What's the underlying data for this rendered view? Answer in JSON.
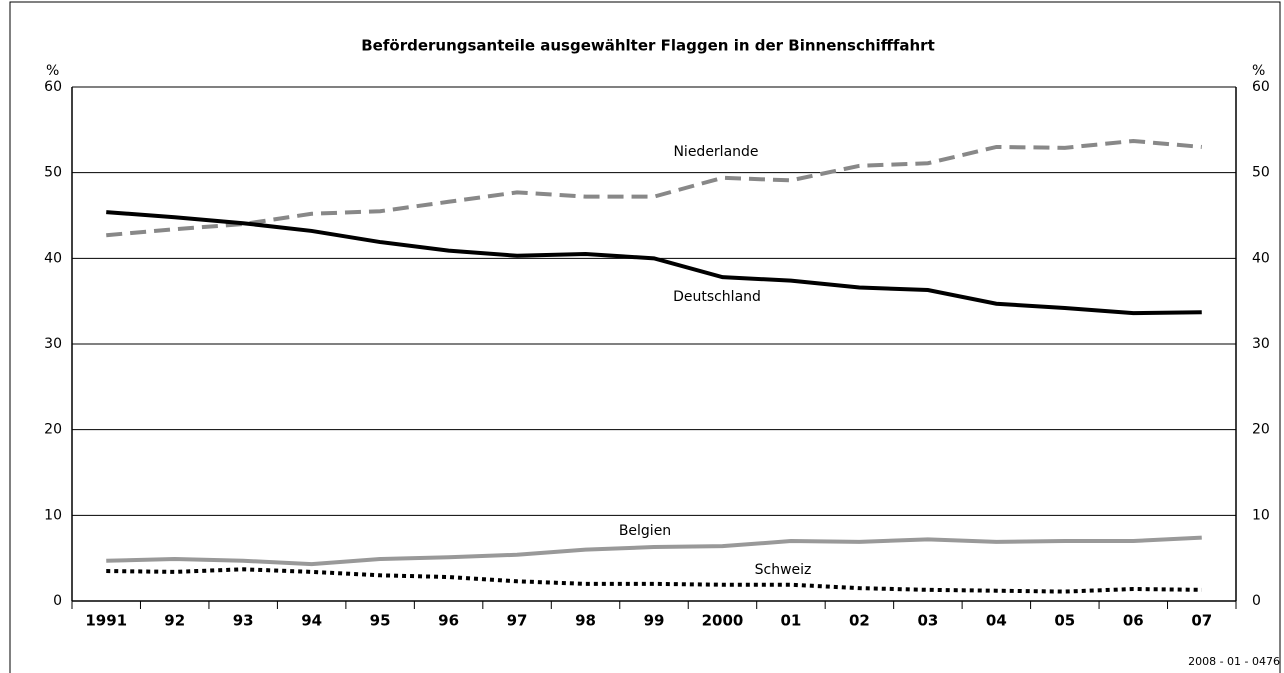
{
  "chart_data": {
    "type": "line",
    "title": "Beförderungsanteile ausgewählter Flaggen in der Binnenschifffahrt",
    "y_unit": "%",
    "y2_unit": "%",
    "source_code": "2008 - 01 - 0476",
    "categories": [
      "1991",
      "92",
      "93",
      "94",
      "95",
      "96",
      "97",
      "98",
      "99",
      "2000",
      "01",
      "02",
      "03",
      "04",
      "05",
      "06",
      "07"
    ],
    "series": [
      {
        "name": "Niederlande",
        "color": "#888888",
        "style": "dashed",
        "values": [
          42.7,
          43.4,
          44.0,
          45.2,
          45.5,
          46.6,
          47.7,
          47.2,
          47.2,
          49.4,
          49.1,
          50.8,
          51.1,
          53.0,
          52.9,
          53.7,
          53.0
        ]
      },
      {
        "name": "Deutschland",
        "color": "#000000",
        "style": "solid",
        "values": [
          45.4,
          44.8,
          44.1,
          43.2,
          41.9,
          40.9,
          40.3,
          40.5,
          40.0,
          37.8,
          37.4,
          36.6,
          36.3,
          34.7,
          34.2,
          33.6,
          33.7
        ]
      },
      {
        "name": "Belgien",
        "color": "#999999",
        "style": "solid",
        "values": [
          4.7,
          4.9,
          4.7,
          4.3,
          4.9,
          5.1,
          5.4,
          6.0,
          6.3,
          6.4,
          7.0,
          6.9,
          7.2,
          6.9,
          7.0,
          7.0,
          7.4
        ]
      },
      {
        "name": "Schweiz",
        "color": "#000000",
        "style": "dotted",
        "values": [
          3.5,
          3.4,
          3.7,
          3.4,
          3.0,
          2.8,
          2.3,
          2.0,
          2.0,
          1.9,
          1.9,
          1.5,
          1.3,
          1.2,
          1.1,
          1.4,
          1.3
        ]
      }
    ],
    "ylim": [
      0,
      60
    ],
    "yticks": [
      0,
      10,
      20,
      30,
      40,
      50,
      60
    ],
    "y2lim": [
      0,
      60
    ],
    "y2ticks": [
      0,
      10,
      20,
      30,
      40,
      50,
      60
    ],
    "grid": true
  }
}
